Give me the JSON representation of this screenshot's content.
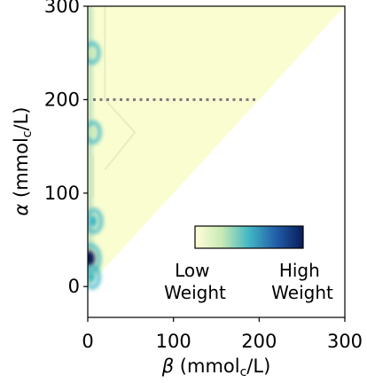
{
  "chart_data": {
    "type": "heatmap",
    "title": "",
    "xlabel": {
      "prefix": "β",
      "unit_main": " (mmol",
      "unit_sub": "c",
      "unit_tail": "/L)"
    },
    "ylabel": {
      "prefix": "α",
      "unit_main": " (mmol",
      "unit_sub": "c",
      "unit_tail": "/L)"
    },
    "xlim": [
      0,
      300
    ],
    "ylim": [
      -33,
      300
    ],
    "x_ticks": [
      0,
      100,
      200,
      300
    ],
    "y_ticks": [
      0,
      100,
      200,
      300
    ],
    "region": {
      "shape": "triangle",
      "vertices": [
        [
          0,
          0
        ],
        [
          0,
          300
        ],
        [
          300,
          300
        ]
      ],
      "color": "#fafdd0"
    },
    "threshold_line": {
      "style": "dotted",
      "color": "#777777",
      "x0": 0,
      "x1": 200,
      "y": 200
    },
    "weight_blobs": [
      {
        "x": 0,
        "y": 30,
        "weight": 1.0
      },
      {
        "x": 4,
        "y": 70,
        "weight": 0.55
      },
      {
        "x": 2,
        "y": 10,
        "weight": 0.4
      },
      {
        "x": 3,
        "y": 165,
        "weight": 0.35
      },
      {
        "x": 2,
        "y": 250,
        "weight": 0.3
      }
    ],
    "colorbar": {
      "low_label": [
        "Low",
        "Weight"
      ],
      "high_label": [
        "High",
        "Weight"
      ],
      "colors": [
        "#ffffd9",
        "#c7e9b4",
        "#41b6c4",
        "#225ea8",
        "#081d58"
      ]
    },
    "grid": false,
    "legend": "bottom-right (inside axes)"
  }
}
